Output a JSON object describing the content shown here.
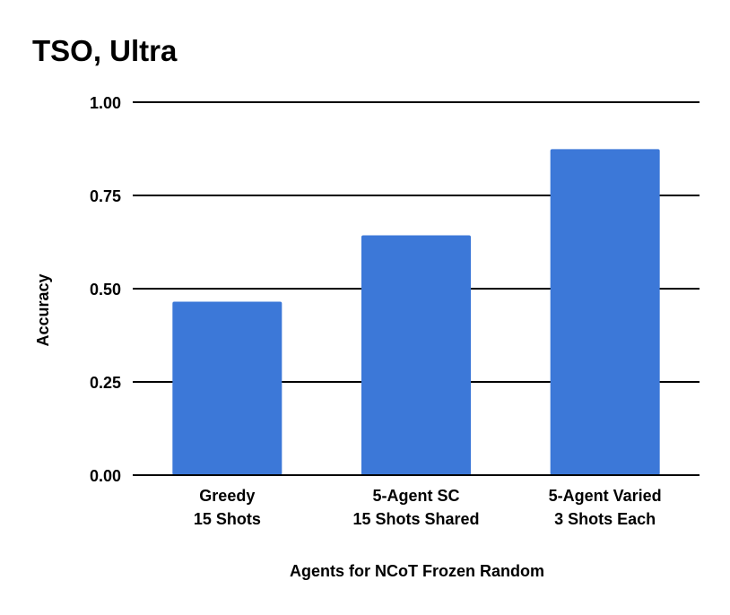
{
  "chart_data": {
    "type": "bar",
    "title": "TSO, Ultra",
    "xlabel": "Agents for NCoT Frozen Random",
    "ylabel": "Accuracy",
    "categories": [
      [
        "Greedy",
        "15 Shots"
      ],
      [
        "5-Agent SC",
        "15 Shots Shared"
      ],
      [
        "5-Agent Varied",
        "3 Shots Each"
      ]
    ],
    "values": [
      0.465,
      0.643,
      0.874
    ],
    "ylim": [
      0,
      1
    ],
    "yticks": [
      "0.00",
      "0.25",
      "0.50",
      "0.75",
      "1.00"
    ],
    "grid": true,
    "colors": {
      "bar": "#3c78d8",
      "grid": "#000000"
    }
  }
}
